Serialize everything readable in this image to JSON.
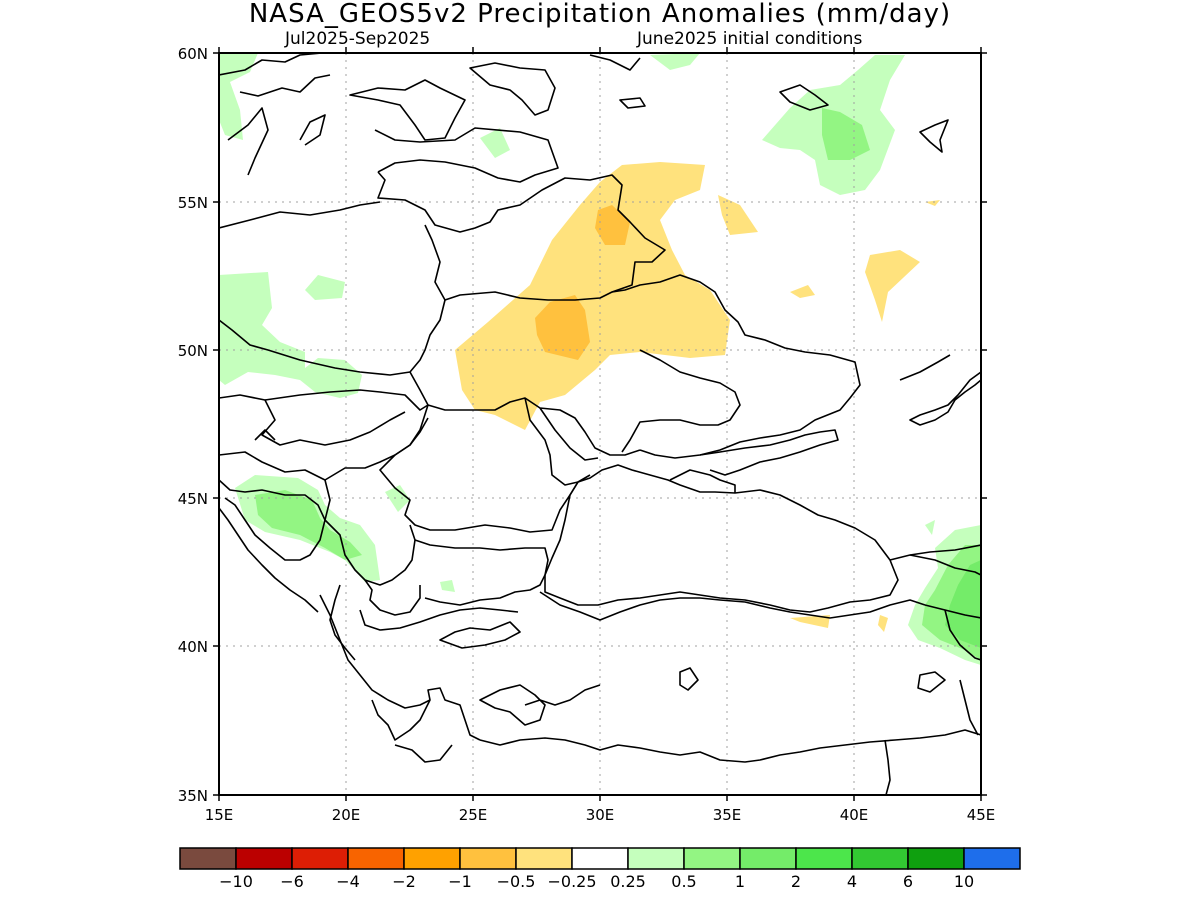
{
  "title": "NASA_GEOS5v2 Precipitation Anomalies (mm/day)",
  "subtitle_left": "Jul2025-Sep2025",
  "subtitle_right": "June2025 initial conditions",
  "lat_ticks": [
    "60N",
    "55N",
    "50N",
    "45N",
    "40N",
    "35N"
  ],
  "lon_ticks": [
    "15E",
    "20E",
    "25E",
    "30E",
    "35E",
    "40E",
    "45E"
  ],
  "colorbar": {
    "colors": [
      "#7a4a3e",
      "#bb0000",
      "#dd1e05",
      "#f86400",
      "#ffa100",
      "#ffc13e",
      "#ffe27d",
      "#ffffff",
      "#c5ffbd",
      "#93f583",
      "#74ec69",
      "#4ce64b",
      "#32c832",
      "#0fa00f",
      "#1e6eeb"
    ],
    "labels": [
      "-10",
      "-6",
      "-4",
      "-2",
      "-1",
      "-0.5",
      "-0.25",
      "0.25",
      "0.5",
      "1",
      "2",
      "4",
      "6",
      "10"
    ]
  }
}
